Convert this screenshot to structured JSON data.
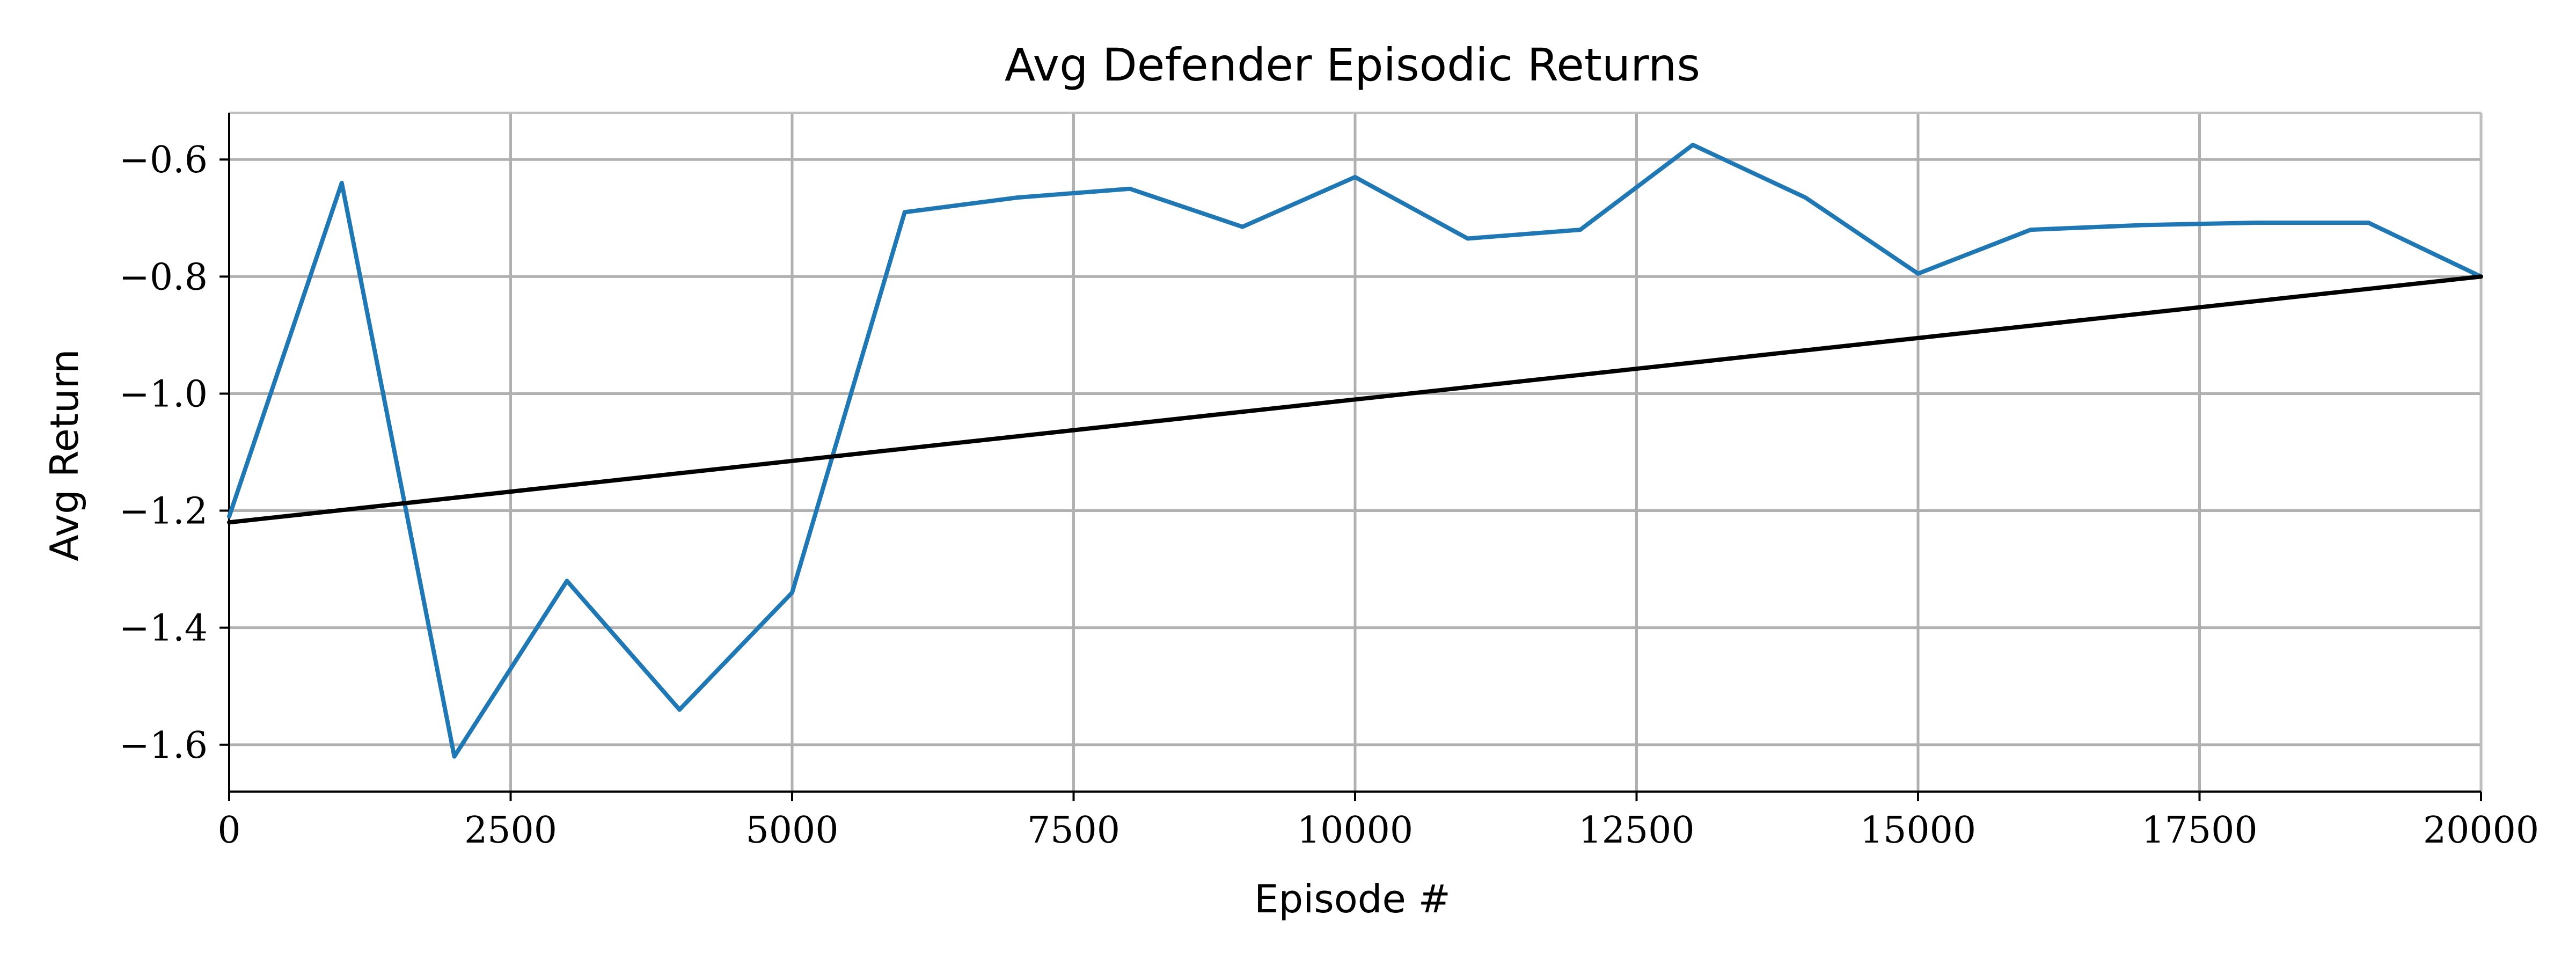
{
  "chart_data": {
    "type": "line",
    "title": "Avg Defender Episodic Returns",
    "xlabel": "Episode #",
    "ylabel": "Avg Return",
    "xlim": [
      0,
      20000
    ],
    "ylim": [
      -1.68,
      -0.52
    ],
    "grid": true,
    "x_ticks": [
      0,
      2500,
      5000,
      7500,
      10000,
      12500,
      15000,
      17500,
      20000
    ],
    "x_tick_labels": [
      "0",
      "2500",
      "5000",
      "7500",
      "10000",
      "12500",
      "15000",
      "17500",
      "20000"
    ],
    "y_ticks": [
      -0.6,
      -0.8,
      -1.0,
      -1.2,
      -1.4,
      -1.6
    ],
    "y_tick_labels": [
      "−0.6",
      "−0.8",
      "−1.0",
      "−1.2",
      "−1.4",
      "−1.6"
    ],
    "x": [
      0,
      1000,
      2000,
      3000,
      4000,
      5000,
      6000,
      7000,
      8000,
      9000,
      10000,
      11000,
      12000,
      13000,
      14000,
      15000,
      16000,
      17000,
      18000,
      19000,
      20000
    ],
    "series": [
      {
        "color": "#1f77b4",
        "values": [
          -1.21,
          -0.64,
          -1.62,
          -1.32,
          -1.54,
          -1.34,
          -0.69,
          -0.665,
          -0.65,
          -0.715,
          -0.63,
          -0.735,
          -0.72,
          -0.575,
          -0.665,
          -0.795,
          -0.72,
          -0.712,
          -0.708,
          -0.708,
          -0.8
        ]
      },
      {
        "color": "#000000",
        "x": [
          0,
          20000
        ],
        "values": [
          -1.22,
          -0.8
        ]
      }
    ]
  }
}
